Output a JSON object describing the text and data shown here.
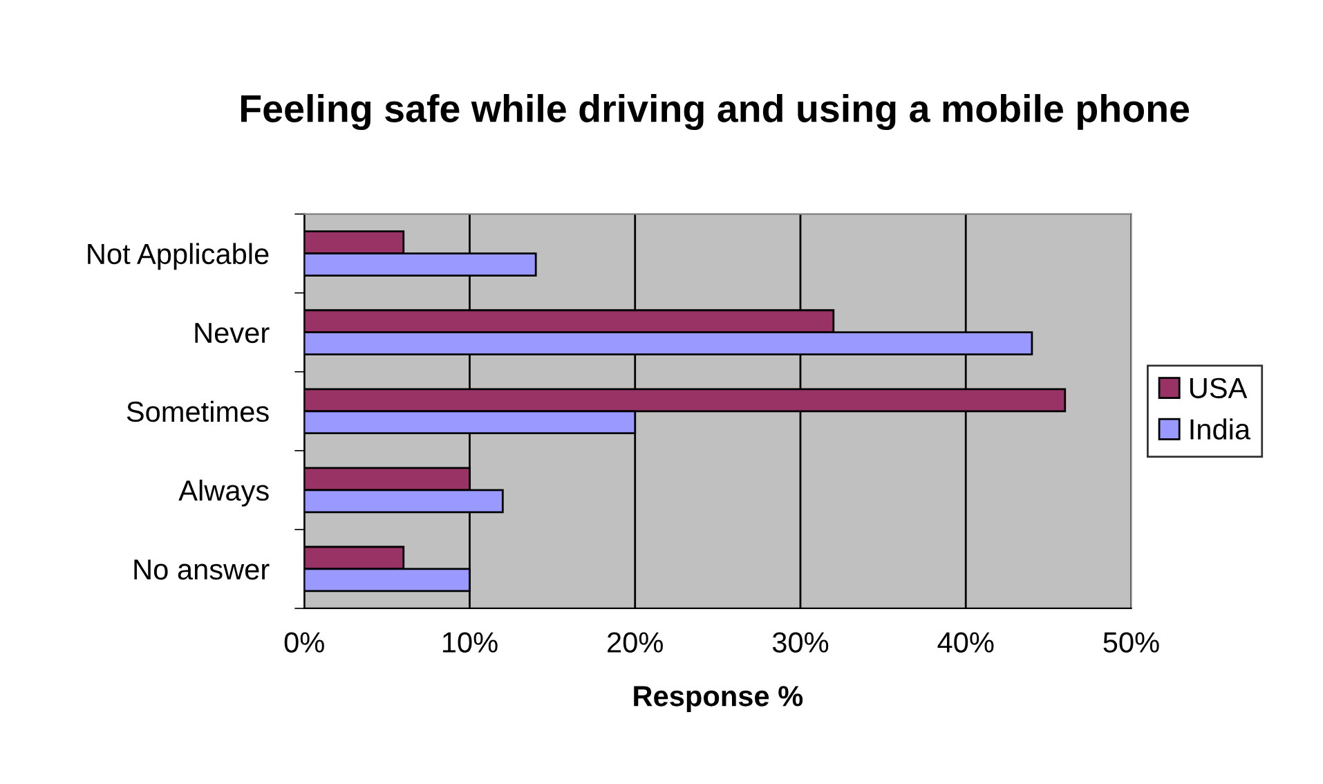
{
  "chart_data": {
    "type": "bar",
    "orientation": "horizontal",
    "title": "Feeling safe while driving and using a mobile phone",
    "xlabel": "Response %",
    "categories": [
      "Not Applicable",
      "Never",
      "Sometimes",
      "Always",
      "No answer"
    ],
    "series": [
      {
        "name": "USA",
        "color": "#993366",
        "values": [
          6,
          32,
          46,
          10,
          6
        ]
      },
      {
        "name": "India",
        "color": "#9999ff",
        "values": [
          14,
          44,
          20,
          12,
          10
        ]
      }
    ],
    "xlim": [
      0,
      50
    ],
    "xticks": [
      {
        "value": 0,
        "label": "0%"
      },
      {
        "value": 10,
        "label": "10%"
      },
      {
        "value": 20,
        "label": "20%"
      },
      {
        "value": 30,
        "label": "30%"
      },
      {
        "value": 40,
        "label": "40%"
      },
      {
        "value": 50,
        "label": "50%"
      }
    ],
    "grid": "x",
    "legend": "right"
  }
}
